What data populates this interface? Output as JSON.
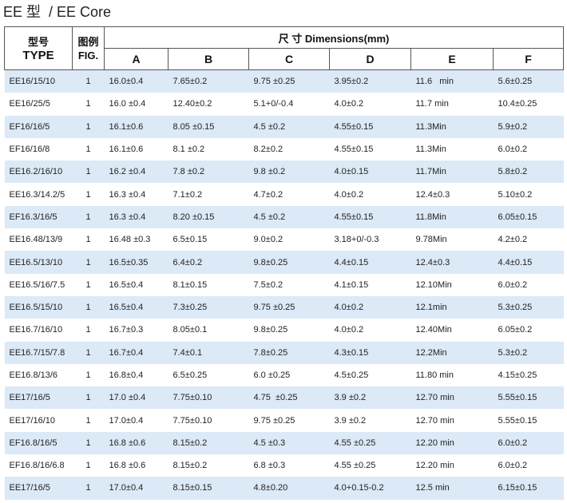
{
  "header": {
    "title": "EE 型  / EE Core"
  },
  "table": {
    "type_cn": "型号",
    "type_en": "TYPE",
    "fig_cn": "图例",
    "fig_en": "FIG.",
    "dimensions": "尺 寸 Dimensions(mm)",
    "columns": [
      "A",
      "B",
      "C",
      "D",
      "E",
      "F"
    ],
    "rows": [
      [
        "EE16/15/10",
        "1",
        "16.0±0.4",
        "7.65±0.2",
        "9.75 ±0.25",
        "3.95±0.2",
        "11.6   min",
        "5.6±0.25"
      ],
      [
        "EE16/25/5",
        "1",
        "16.0 ±0.4",
        "12.40±0.2",
        "5.1+0/-0.4",
        "4.0±0.2",
        "11.7 min",
        "10.4±0.25"
      ],
      [
        "EF16/16/5",
        "1",
        "16.1±0.6",
        "8.05 ±0.15",
        "4.5 ±0.2",
        "4.55±0.15",
        "11.3Min",
        "5.9±0.2"
      ],
      [
        "EF16/16/8",
        "1",
        "16.1±0.6",
        "8.1 ±0.2",
        "8.2±0.2",
        "4.55±0.15",
        "11.3Min",
        "6.0±0.2"
      ],
      [
        "EE16.2/16/10",
        "1",
        "16.2 ±0.4",
        "7.8 ±0.2",
        "9.8 ±0.2",
        "4.0±0.15",
        "11.7Min",
        "5.8±0.2"
      ],
      [
        "EE16.3/14.2/5",
        "1",
        "16.3 ±0.4",
        "7.1±0.2",
        "4.7±0.2",
        "4.0±0.2",
        "12.4±0.3",
        "5.10±0.2"
      ],
      [
        "EF16.3/16/5",
        "1",
        "16.3 ±0.4",
        "8.20 ±0.15",
        "4.5 ±0.2",
        "4.55±0.15",
        "11.8Min",
        "6.05±0.15"
      ],
      [
        "EE16.48/13/9",
        "1",
        "16.48 ±0.3",
        "6.5±0.15",
        "9.0±0.2",
        "3.18+0/-0.3",
        "9.78Min",
        "4.2±0.2"
      ],
      [
        "EE16.5/13/10",
        "1",
        "16.5±0.35",
        "6.4±0.2",
        "9.8±0.25",
        "4.4±0.15",
        "12.4±0.3",
        "4.4±0.15"
      ],
      [
        "EE16.5/16/7.5",
        "1",
        "16.5±0.4",
        "8.1±0.15",
        "7.5±0.2",
        "4.1±0.15",
        "12.10Min",
        "6.0±0.2"
      ],
      [
        "EE16.5/15/10",
        "1",
        "16.5±0.4",
        "7.3±0.25",
        "9.75 ±0.25",
        "4.0±0.2",
        "12.1min",
        "5.3±0.25"
      ],
      [
        "EE16.7/16/10",
        "1",
        "16.7±0.3",
        "8.05±0.1",
        "9.8±0.25",
        "4.0±0.2",
        "12.40Min",
        "6.05±0.2"
      ],
      [
        "EE16.7/15/7.8",
        "1",
        "16.7±0.4",
        "7.4±0.1",
        "7.8±0.25",
        "4.3±0.15",
        "12.2Min",
        "5.3±0.2"
      ],
      [
        "EE16.8/13/6",
        "1",
        "16.8±0.4",
        "6.5±0.25",
        "6.0 ±0.25",
        "4.5±0.25",
        "11.80 min",
        "4.15±0.25"
      ],
      [
        "EE17/16/5",
        "1",
        "17.0 ±0.4",
        "7.75±0.10",
        "4.75  ±0.25",
        "3.9 ±0.2",
        "12.70 min",
        "5.55±0.15"
      ],
      [
        "EE17/16/10",
        "1",
        "17.0±0.4",
        "7.75±0.10",
        "9.75 ±0.25",
        "3.9 ±0.2",
        "12.70 min",
        "5.55±0.15"
      ],
      [
        "EF16.8/16/5",
        "1",
        "16.8 ±0.6",
        "8.15±0.2",
        "4.5 ±0.3",
        "4.55 ±0.25",
        "12.20 min",
        "6.0±0.2"
      ],
      [
        "EF16.8/16/6.8",
        "1",
        "16.8 ±0.6",
        "8.15±0.2",
        "6.8 ±0.3",
        "4.55 ±0.25",
        "12.20 min",
        "6.0±0.2"
      ],
      [
        "EE17/16/5",
        "1",
        "17.0±0.4",
        "8.15±0.15",
        "4.8±0.20",
        "4.0+0.15-0.2",
        "12.5 min",
        "6.15±0.15"
      ]
    ]
  }
}
